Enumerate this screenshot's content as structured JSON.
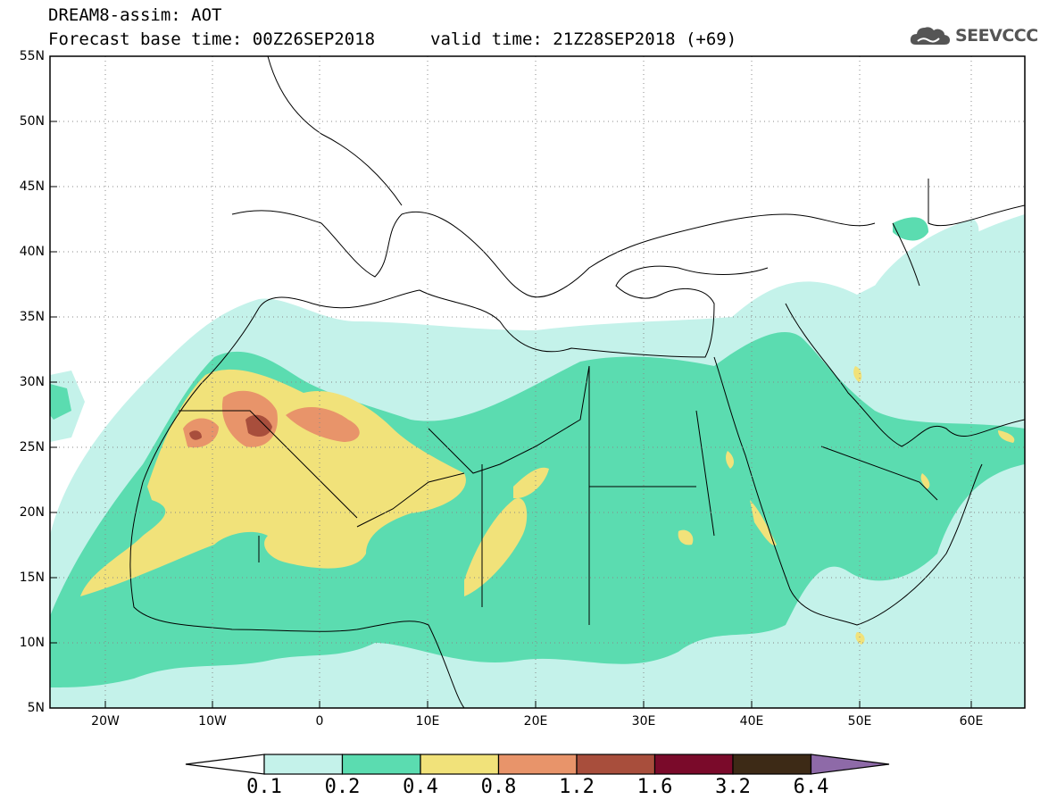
{
  "header": {
    "line1": "DREAM8-assim: AOT",
    "line2": "Forecast base time: 00Z26SEP2018",
    "line3": "valid time: 21Z28SEP2018 (+69)"
  },
  "logo": {
    "text": "SEEVCCC",
    "icon": "cloud-icon"
  },
  "map": {
    "lat_labels": [
      "55N",
      "50N",
      "45N",
      "40N",
      "35N",
      "30N",
      "25N",
      "20N",
      "15N",
      "10N",
      "5N"
    ],
    "lon_labels": [
      "20W",
      "10W",
      "0",
      "10E",
      "20E",
      "30E",
      "40E",
      "50E",
      "60E"
    ]
  },
  "colorbar": {
    "labels": [
      "0.1",
      "0.2",
      "0.4",
      "0.8",
      "1.2",
      "1.6",
      "3.2",
      "6.4"
    ],
    "colors": [
      "#ffffff",
      "#c4f2ea",
      "#5bdcb0",
      "#f1e27a",
      "#e8946a",
      "#a84e3c",
      "#7a0a2a",
      "#3d2a16",
      "#8e6aa8"
    ]
  }
}
